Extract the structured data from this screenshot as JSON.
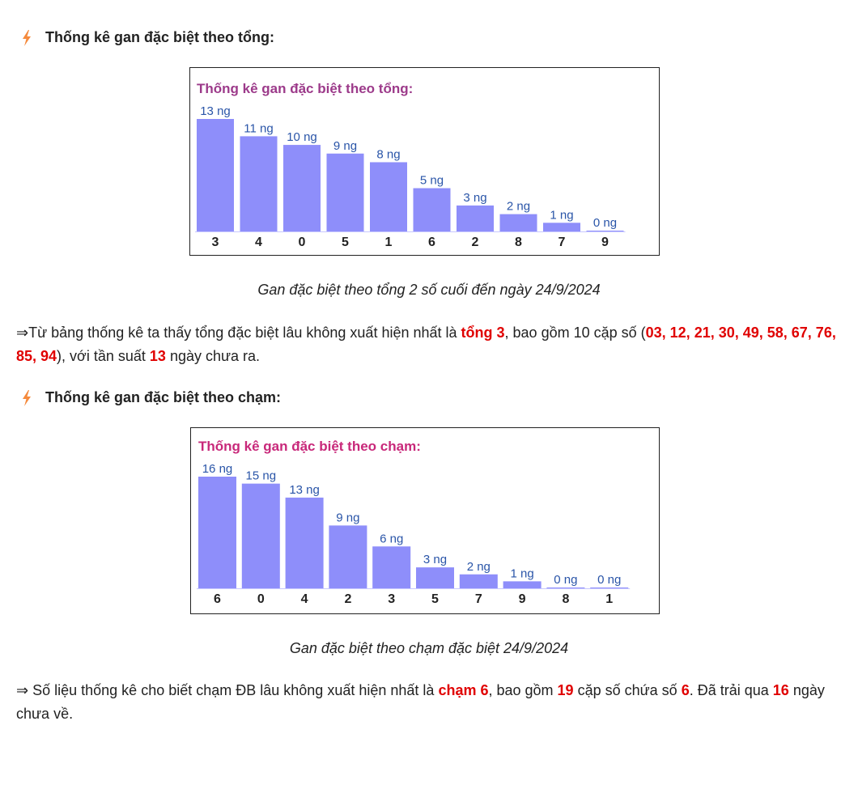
{
  "section1": {
    "heading": "Thống kê gan đặc biệt theo tổng:",
    "icon": "lightning-icon",
    "caption": "Gan đặc biệt theo tổng 2 số cuối đến ngày 24/9/2024",
    "paragraph": {
      "arrow": "⇒",
      "t1": "Từ bảng thống kê ta thấy tổng đặc biệt lâu không xuất hiện nhất là ",
      "h1": "tổng 3",
      "t2": ", bao gồm 10 cặp số (",
      "h2": "03, 12, 21, 30, 49, 58, 67, 76, 85, 94",
      "t3": "), với tần suất ",
      "h3": "13",
      "t4": " ngày chưa ra."
    }
  },
  "section2": {
    "heading": "Thống kê gan đặc biệt theo chạm:",
    "icon": "lightning-icon",
    "caption": "Gan đặc biệt theo chạm đặc biệt 24/9/2024",
    "paragraph": {
      "arrow": "⇒",
      "t1": " Số liệu thống kê cho biết chạm ĐB lâu không xuất hiện nhất là ",
      "h1": "chạm 6",
      "t2": ", bao gồm ",
      "h2": "19",
      "t3": " cặp số chứa số ",
      "h3": "6",
      "t4": ". Đã trải qua ",
      "h4": "16",
      "t5": " ngày chưa về."
    }
  },
  "colors": {
    "bar": "#8e8efa",
    "bar_label": "#2a55a8",
    "chart1_title": "#9c3a8a",
    "chart2_title": "#c8287a",
    "highlight": "#e00000",
    "icon": "#f58a3c"
  },
  "chart_data": [
    {
      "type": "bar",
      "title": "Thống kê gan đặc biệt theo tổng:",
      "categories": [
        "3",
        "4",
        "0",
        "5",
        "1",
        "6",
        "2",
        "8",
        "7",
        "9"
      ],
      "values": [
        13,
        11,
        10,
        9,
        8,
        5,
        3,
        2,
        1,
        0
      ],
      "labels": [
        "13 ng",
        "11 ng",
        "10 ng",
        "9 ng",
        "8 ng",
        "5 ng",
        "3 ng",
        "2 ng",
        "1 ng",
        "0 ng"
      ],
      "ylim": [
        0,
        13
      ]
    },
    {
      "type": "bar",
      "title": "Thống kê gan đặc biệt theo chạm:",
      "categories": [
        "6",
        "0",
        "4",
        "2",
        "3",
        "5",
        "7",
        "9",
        "8",
        "1"
      ],
      "values": [
        16,
        15,
        13,
        9,
        6,
        3,
        2,
        1,
        0,
        0
      ],
      "labels": [
        "16 ng",
        "15 ng",
        "13 ng",
        "9 ng",
        "6 ng",
        "3 ng",
        "2 ng",
        "1 ng",
        "0 ng",
        "0 ng"
      ],
      "ylim": [
        0,
        16
      ]
    }
  ]
}
